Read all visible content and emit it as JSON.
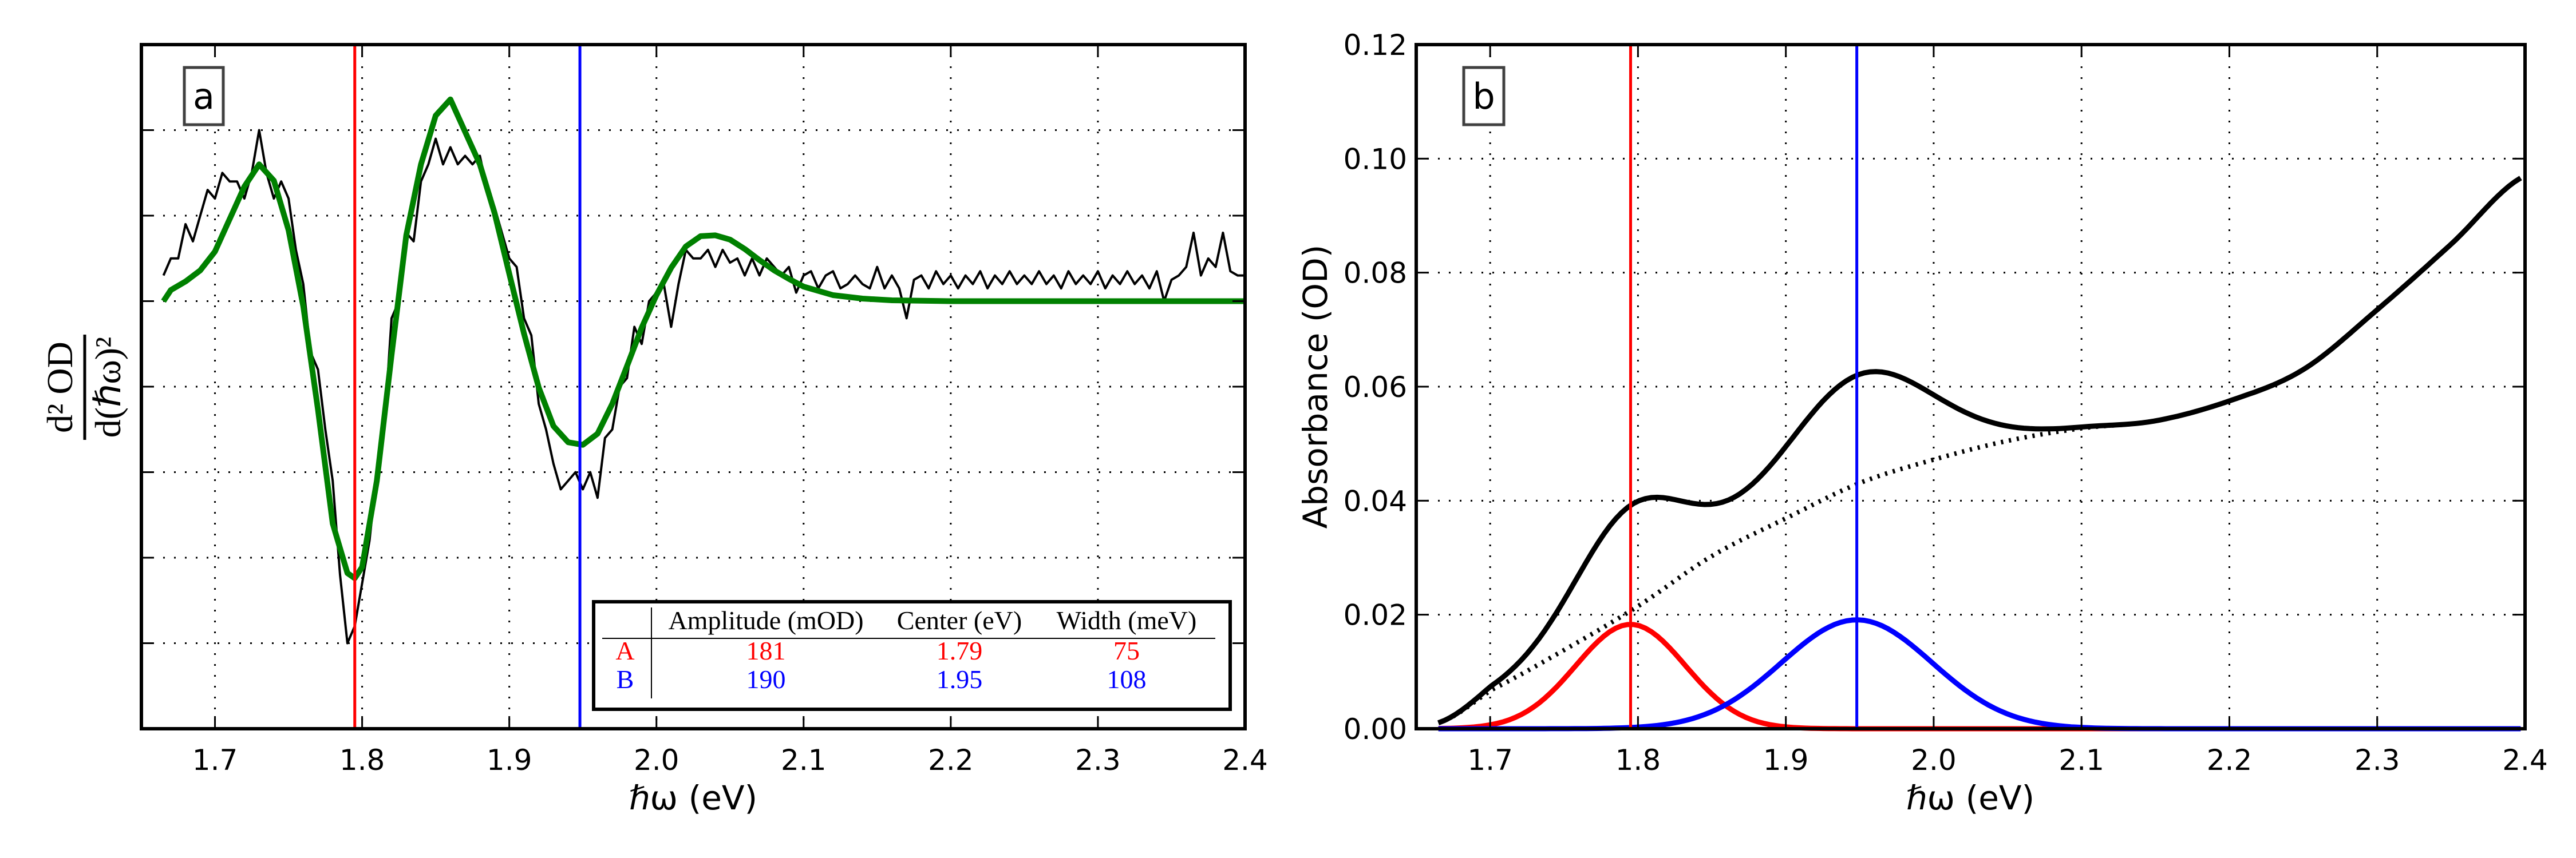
{
  "colors": {
    "peak_A": "#ff0000",
    "peak_B": "#0000ff",
    "fit": "#008000",
    "data": "#000000"
  },
  "chart_data": [
    {
      "panel_label": "a",
      "type": "line",
      "xlabel": "ℏω  (eV)",
      "ylabel_numerator": "d² OD",
      "ylabel_denominator": "d(ℏω)²",
      "xlim": [
        1.65,
        2.4
      ],
      "ylim": [
        -5,
        3
      ],
      "xticks": [
        1.7,
        1.8,
        1.9,
        2.0,
        2.1,
        2.2,
        2.3,
        2.4
      ],
      "xtick_labels": [
        "1.7",
        "1.8",
        "1.9",
        "2.0",
        "2.1",
        "2.2",
        "2.3",
        "2.4"
      ],
      "yticks": [
        -4,
        -3,
        -2,
        -1,
        0,
        1,
        2
      ],
      "ytick_labels_shown": false,
      "grid": true,
      "vlines": [
        {
          "x": 1.795,
          "color": "#ff0000"
        },
        {
          "x": 1.948,
          "color": "#0000ff"
        }
      ],
      "series": [
        {
          "role": "measured",
          "color": "#000000",
          "x_start": 1.665,
          "x_step": 0.005,
          "y": [
            0.3,
            0.5,
            0.5,
            0.9,
            0.7,
            1.0,
            1.3,
            1.2,
            1.5,
            1.4,
            1.4,
            1.2,
            1.5,
            2.0,
            1.5,
            1.2,
            1.4,
            1.2,
            0.6,
            0.2,
            -0.6,
            -0.8,
            -1.5,
            -2.1,
            -3.2,
            -4.0,
            -3.8,
            -3.3,
            -2.8,
            -2.0,
            -1.5,
            -0.2,
            0.0,
            0.8,
            0.7,
            1.4,
            1.6,
            1.9,
            1.6,
            1.8,
            1.6,
            1.7,
            1.6,
            1.7,
            1.3,
            1.1,
            0.8,
            0.5,
            0.4,
            -0.2,
            -0.4,
            -1.2,
            -1.5,
            -1.9,
            -2.2,
            -2.1,
            -2.0,
            -2.2,
            -2.0,
            -2.3,
            -1.6,
            -1.5,
            -1.0,
            -0.9,
            -0.3,
            -0.5,
            0.0,
            0.1,
            0.2,
            -0.3,
            0.2,
            0.6,
            0.5,
            0.5,
            0.6,
            0.4,
            0.6,
            0.45,
            0.5,
            0.3,
            0.5,
            0.3,
            0.5,
            0.4,
            0.3,
            0.4,
            0.1,
            0.3,
            0.35,
            0.15,
            0.3,
            0.35,
            0.15,
            0.2,
            0.3,
            0.2,
            0.15,
            0.4,
            0.15,
            0.3,
            0.15,
            -0.2,
            0.25,
            0.3,
            0.15,
            0.35,
            0.2,
            0.3,
            0.15,
            0.3,
            0.2,
            0.35,
            0.15,
            0.3,
            0.2,
            0.35,
            0.2,
            0.3,
            0.2,
            0.35,
            0.2,
            0.3,
            0.15,
            0.35,
            0.2,
            0.3,
            0.2,
            0.35,
            0.15,
            0.3,
            0.2,
            0.35,
            0.2,
            0.3,
            0.15,
            0.35,
            0.0,
            0.25,
            0.3,
            0.4,
            0.8,
            0.3,
            0.5,
            0.4,
            0.8,
            0.35,
            0.3,
            0.3
          ]
        },
        {
          "role": "fit",
          "color": "#008000",
          "x": [
            1.665,
            1.67,
            1.68,
            1.69,
            1.7,
            1.71,
            1.72,
            1.73,
            1.74,
            1.75,
            1.76,
            1.77,
            1.78,
            1.79,
            1.795,
            1.8,
            1.81,
            1.82,
            1.83,
            1.84,
            1.85,
            1.86,
            1.87,
            1.88,
            1.89,
            1.9,
            1.91,
            1.92,
            1.93,
            1.94,
            1.95,
            1.96,
            1.97,
            1.98,
            1.99,
            2.0,
            2.01,
            2.02,
            2.03,
            2.04,
            2.05,
            2.06,
            2.07,
            2.08,
            2.09,
            2.1,
            2.12,
            2.14,
            2.16,
            2.2,
            2.4
          ],
          "y": [
            0,
            0.13,
            0.23,
            0.36,
            0.58,
            0.96,
            1.34,
            1.6,
            1.41,
            0.83,
            -0.06,
            -1.27,
            -2.6,
            -3.18,
            -3.24,
            -3.11,
            -2.1,
            -0.63,
            0.77,
            1.6,
            2.17,
            2.36,
            1.98,
            1.6,
            1.03,
            0.32,
            -0.38,
            -1.01,
            -1.46,
            -1.65,
            -1.68,
            -1.55,
            -1.2,
            -0.76,
            -0.31,
            0.07,
            0.39,
            0.64,
            0.76,
            0.77,
            0.72,
            0.61,
            0.48,
            0.36,
            0.26,
            0.17,
            0.07,
            0.03,
            0.01,
            0,
            0
          ]
        }
      ],
      "table": {
        "headers": [
          "",
          "Amplitude (mOD)",
          "Center (eV)",
          "Width (meV)"
        ],
        "rows": [
          {
            "label": "A",
            "amplitude": "181",
            "center": "1.79",
            "width": "75",
            "color": "#ff0000"
          },
          {
            "label": "B",
            "amplitude": "190",
            "center": "1.95",
            "width": "108",
            "color": "#0000ff"
          }
        ]
      }
    },
    {
      "panel_label": "b",
      "type": "line",
      "xlabel": "ℏω  (eV)",
      "ylabel": "Absorbance (OD)",
      "xlim": [
        1.65,
        2.4
      ],
      "ylim": [
        0,
        0.12
      ],
      "xticks": [
        1.7,
        1.8,
        1.9,
        2.0,
        2.1,
        2.2,
        2.3,
        2.4
      ],
      "xtick_labels": [
        "1.7",
        "1.8",
        "1.9",
        "2.0",
        "2.1",
        "2.2",
        "2.3",
        "2.4"
      ],
      "yticks": [
        0,
        0.02,
        0.04,
        0.06,
        0.08,
        0.1,
        0.12
      ],
      "ytick_labels": [
        "0.00",
        "0.02",
        "0.04",
        "0.06",
        "0.08",
        "0.10",
        "0.12"
      ],
      "grid": true,
      "vlines": [
        {
          "x": 1.795,
          "color": "#ff0000"
        },
        {
          "x": 1.948,
          "color": "#0000ff"
        }
      ],
      "x_range": [
        1.665,
        2.4
      ],
      "peaks": [
        {
          "name": "A",
          "color": "#ff0000",
          "amplitude_OD": 0.0183,
          "center_eV": 1.795,
          "sigma_eV": 0.037
        },
        {
          "name": "B",
          "color": "#0000ff",
          "amplitude_OD": 0.0191,
          "center_eV": 1.948,
          "sigma_eV": 0.051
        }
      ],
      "background": {
        "style": "dotted",
        "x": [
          1.665,
          1.7,
          1.75,
          1.8,
          1.85,
          1.9,
          1.95,
          2.0,
          2.05,
          2.1,
          2.15,
          2.2,
          2.25,
          2.3,
          2.35,
          2.4
        ],
        "y": [
          0.001,
          0.0067,
          0.0138,
          0.0215,
          0.0303,
          0.0369,
          0.0431,
          0.0472,
          0.0505,
          0.0527,
          0.054,
          0.0575,
          0.063,
          0.0735,
          0.085,
          0.097
        ]
      },
      "total": {
        "style": "solid",
        "color": "#000000",
        "definition": "background + A + B"
      }
    }
  ]
}
